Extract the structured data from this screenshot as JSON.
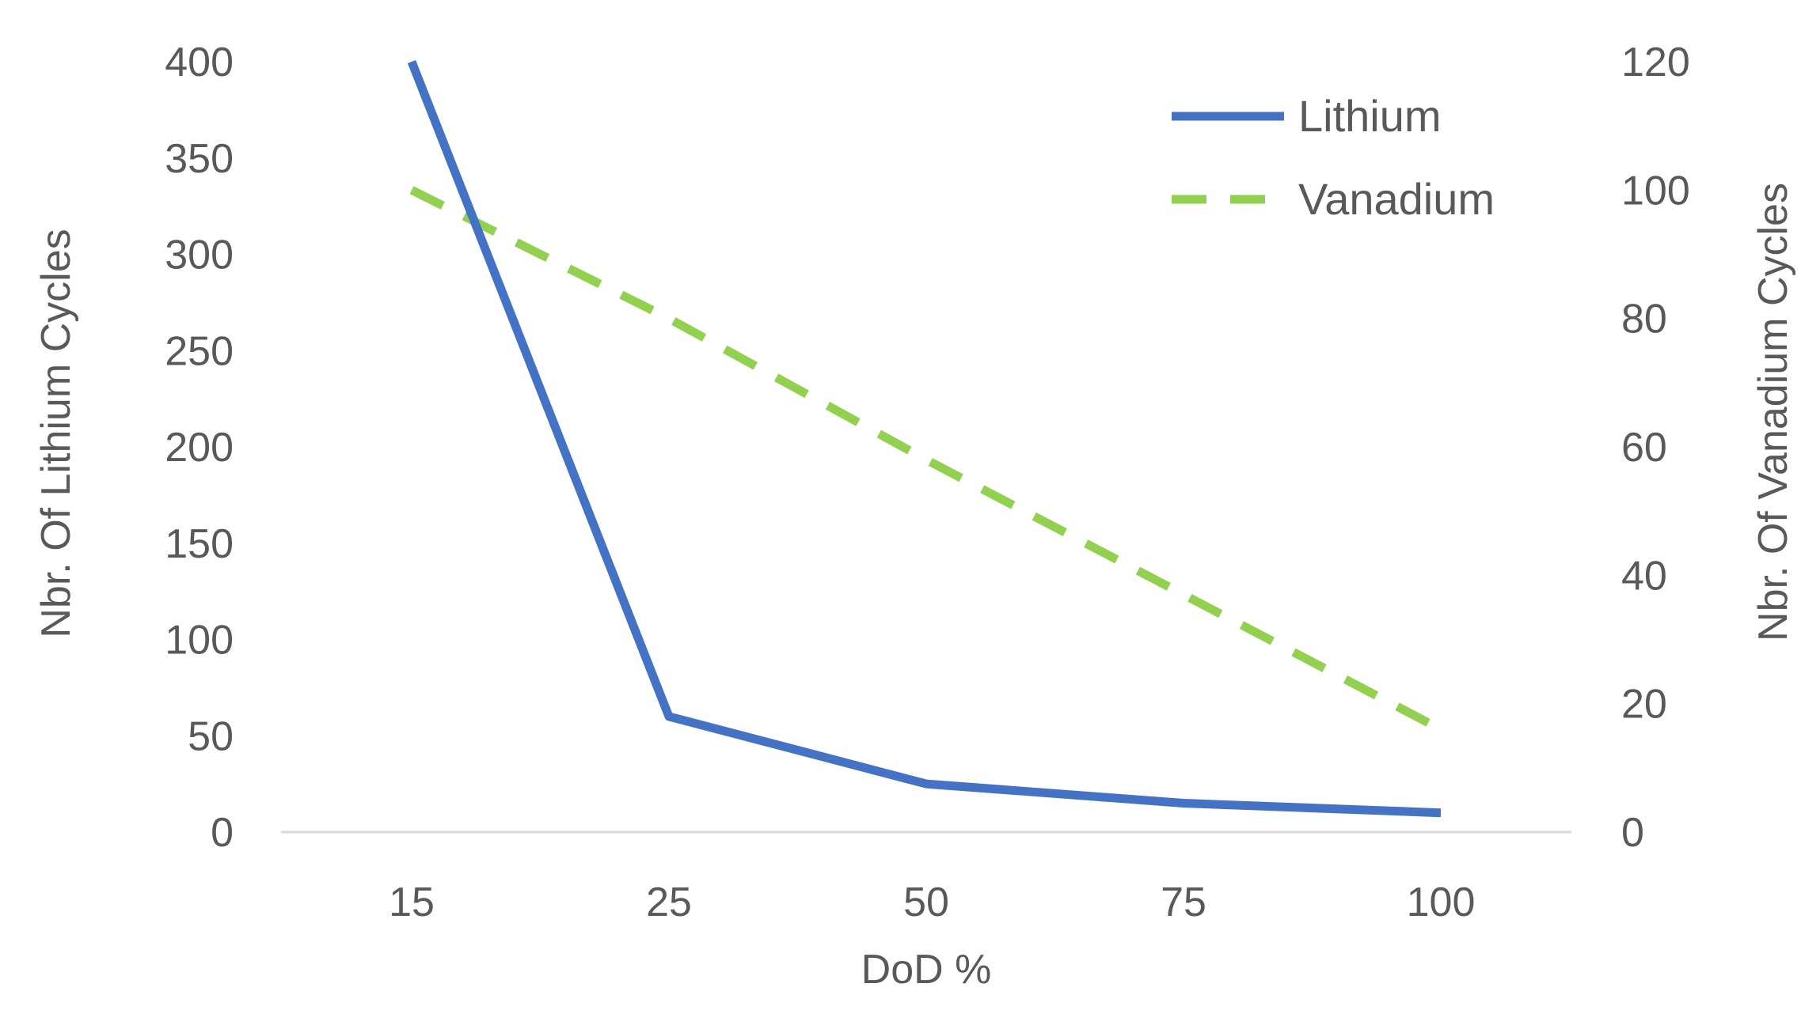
{
  "chart_data": {
    "type": "line",
    "title": "",
    "xlabel": "DoD %",
    "ylabel_left": "Nbr. Of Lithium Cycles",
    "ylabel_right": "Nbr. Of Vanadium Cycles",
    "categories": [
      "15",
      "25",
      "50",
      "75",
      "100"
    ],
    "y_left": {
      "min": 0,
      "max": 400,
      "step": 50,
      "ticks": [
        "0",
        "50",
        "100",
        "150",
        "200",
        "250",
        "300",
        "350",
        "400"
      ]
    },
    "y_right": {
      "min": 0,
      "max": 120,
      "step": 20,
      "ticks": [
        "0",
        "20",
        "40",
        "60",
        "80",
        "100",
        "120"
      ]
    },
    "grid": false,
    "legend_position": "top-right",
    "series": [
      {
        "name": "Lithium",
        "axis": "left",
        "style": "solid",
        "color": "#4472C4",
        "values": [
          400,
          60,
          25,
          15,
          10
        ]
      },
      {
        "name": "Vanadium",
        "axis": "right",
        "style": "dashed",
        "color": "#92D050",
        "values": [
          100,
          80,
          58,
          37,
          16
        ]
      }
    ],
    "axis_line_color": "#D9D9D9",
    "text_color": "#595959"
  }
}
